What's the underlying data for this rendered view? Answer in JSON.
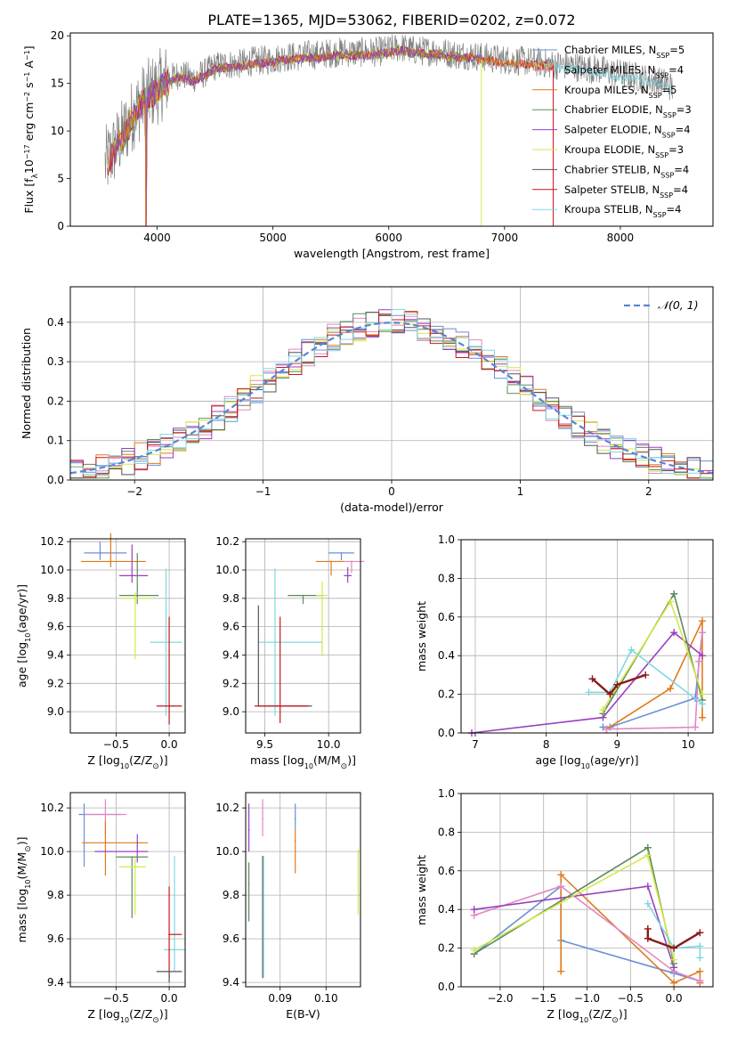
{
  "figure_title": "PLATE=1365, MJD=53062, FIBERID=0202, z=0.072",
  "palette": {
    "Chabrier MILES": "#6a8fd4",
    "Salpeter MILES": "#e387c2",
    "Kroupa MILES": "#e07a1e",
    "Chabrier ELODIE": "#5e8a5e",
    "Salpeter ELODIE": "#9a3fbf",
    "Kroupa ELODIE": "#d4e84a",
    "Chabrier STELIB": "#555555",
    "Salpeter STELIB": "#c8161b",
    "Kroupa STELIB": "#7fd8e0",
    "data": "#808080",
    "normal": "#5b84d6",
    "darkred": "#8b1a1a"
  },
  "chart_data": [
    {
      "id": "spectrum",
      "type": "line",
      "title": "",
      "xlabel": "wavelength [Angstrom, rest frame]",
      "ylabel": "Flux [f_λ10^-17 erg cm^-2 s^-1 A^-1]",
      "xlim": [
        3250,
        8800
      ],
      "ylim": [
        0,
        20.3
      ],
      "xticks": [
        4000,
        5000,
        6000,
        7000,
        8000
      ],
      "yticks": [
        0,
        5,
        10,
        15,
        20
      ],
      "grid": false,
      "legend_position": "right",
      "continuum": {
        "x": [
          3550,
          3600,
          3700,
          3800,
          3900,
          4000,
          4100,
          4200,
          4300,
          4400,
          4500,
          4600,
          4700,
          4800,
          4900,
          5000,
          5100,
          5200,
          5300,
          5400,
          5500,
          5600,
          5700,
          5800,
          5900,
          6000,
          6100,
          6200,
          6300,
          6400,
          6500,
          6600,
          6700,
          6800,
          6900,
          7000,
          7100,
          7200,
          7300,
          7400,
          7500,
          7600,
          7700,
          7800,
          7900,
          8000,
          8100,
          8200,
          8300,
          8400,
          8450
        ],
        "y": [
          6.5,
          7.5,
          9.5,
          12.0,
          13.5,
          14.5,
          15.5,
          16.0,
          15.5,
          16.0,
          16.8,
          17.0,
          17.0,
          17.3,
          17.4,
          17.5,
          17.8,
          17.8,
          18.0,
          18.0,
          18.2,
          18.3,
          18.2,
          18.3,
          18.3,
          18.5,
          18.8,
          18.5,
          18.4,
          18.4,
          18.2,
          18.0,
          18.0,
          17.8,
          17.6,
          17.5,
          17.4,
          17.3,
          17.2,
          17.0,
          16.9,
          16.8,
          16.6,
          16.5,
          16.2,
          16.0,
          15.8,
          15.5,
          15.3,
          15.0,
          14.5
        ]
      },
      "series": [
        {
          "name": "Chabrier MILES, N_SSP=5",
          "label": "Chabrier MILES, N",
          "sub": "SSP",
          "val": "=5"
        },
        {
          "name": "Salpeter MILES, N_SSP=4",
          "label": "Salpeter MILES, N",
          "sub": "SSP",
          "val": "=4"
        },
        {
          "name": "Kroupa MILES, N_SSP=5",
          "label": "Kroupa MILES, N",
          "sub": "SSP",
          "val": "=5"
        },
        {
          "name": "Chabrier ELODIE, N_SSP=3",
          "label": "Chabrier ELODIE, N",
          "sub": "SSP",
          "val": "=3"
        },
        {
          "name": "Salpeter ELODIE, N_SSP=4",
          "label": "Salpeter ELODIE, N",
          "sub": "SSP",
          "val": "=4"
        },
        {
          "name": "Kroupa ELODIE, N_SSP=3",
          "label": "Kroupa ELODIE, N",
          "sub": "SSP",
          "val": "=3"
        },
        {
          "name": "Chabrier STELIB, N_SSP=4",
          "label": "Chabrier STELIB, N",
          "sub": "SSP",
          "val": "=4"
        },
        {
          "name": "Salpeter STELIB, N_SSP=4",
          "label": "Salpeter STELIB, N",
          "sub": "SSP",
          "val": "=4"
        },
        {
          "name": "Kroupa STELIB, N_SSP=4",
          "label": "Kroupa STELIB, N",
          "sub": "SSP",
          "val": "=4"
        }
      ]
    },
    {
      "id": "residuals",
      "type": "line",
      "title": "",
      "xlabel": "(data-model)/error",
      "ylabel": "Normed distribution",
      "xlim": [
        -2.5,
        2.5
      ],
      "ylim": [
        0,
        0.49
      ],
      "xticks": [
        -2,
        -1,
        0,
        1,
        2
      ],
      "yticks": [
        0.0,
        0.1,
        0.2,
        0.3,
        0.4
      ],
      "grid": true,
      "legend": "𝒩(0, 1)",
      "legend_position": "top-right",
      "normal": {
        "mean": 0,
        "sigma": 1
      }
    },
    {
      "id": "age-metallicity",
      "type": "scatter",
      "xlabel": "Z [log10(Z/Z⊙)]",
      "ylabel": "age  [log10(age/yr)]",
      "xlim": [
        -0.93,
        0.15
      ],
      "ylim": [
        8.85,
        10.22
      ],
      "xticks": [
        -0.5,
        0.0
      ],
      "yticks": [
        9.0,
        9.2,
        9.4,
        9.6,
        9.8,
        10.0,
        10.2
      ],
      "grid": true,
      "points": [
        {
          "s": "Chabrier MILES",
          "x": -0.65,
          "y": 10.12,
          "xerr": [
            0.15,
            0.25
          ],
          "yerr": [
            0.05,
            0.08
          ]
        },
        {
          "s": "Kroupa MILES",
          "x": -0.55,
          "y": 10.06,
          "xerr": [
            0.28,
            0.33
          ],
          "yerr": [
            0.04,
            0.2
          ]
        },
        {
          "s": "Salpeter ELODIE",
          "x": -0.35,
          "y": 9.96,
          "xerr": [
            0.12,
            0.15
          ],
          "yerr": [
            0.05,
            0.22
          ]
        },
        {
          "s": "Chabrier ELODIE",
          "x": -0.3,
          "y": 9.82,
          "xerr": [
            0.17,
            0.2
          ],
          "yerr": [
            0.06,
            0.3
          ]
        },
        {
          "s": "Kroupa ELODIE",
          "x": -0.32,
          "y": 9.8,
          "xerr": [
            0.15,
            0.17
          ],
          "yerr": [
            0.43,
            0.04
          ]
        },
        {
          "s": "Kroupa STELIB",
          "x": -0.03,
          "y": 9.49,
          "xerr": [
            0.15,
            0.15
          ],
          "yerr": [
            0.52,
            0.52
          ]
        },
        {
          "s": "Salpeter STELIB",
          "x": 0.0,
          "y": 9.04,
          "xerr": [
            0.12,
            0.12
          ],
          "yerr": [
            0.13,
            0.63
          ]
        },
        {
          "s": "Chabrier STELIB",
          "x": 0.04,
          "y": 9.04,
          "xerr": [
            0.0,
            0.0
          ],
          "yerr": [
            0.0,
            0.0
          ]
        }
      ]
    },
    {
      "id": "age-mass",
      "type": "scatter",
      "xlabel": "mass [log10(M/M⊙)]",
      "ylabel": "",
      "xlim": [
        9.35,
        10.25
      ],
      "ylim": [
        8.85,
        10.22
      ],
      "xticks": [
        9.5,
        10.0
      ],
      "yticks": [
        9.0,
        9.2,
        9.4,
        9.6,
        9.8,
        10.0,
        10.2
      ],
      "grid": true,
      "points": [
        {
          "s": "Chabrier MILES",
          "x": 10.1,
          "y": 10.12,
          "xerr": [
            0.1,
            0.1
          ],
          "yerr": [
            0.05,
            0.0
          ]
        },
        {
          "s": "Salpeter MILES",
          "x": 10.18,
          "y": 10.06,
          "xerr": [
            0.1,
            0.1
          ],
          "yerr": [
            0.08,
            0.0
          ]
        },
        {
          "s": "Kroupa MILES",
          "x": 10.02,
          "y": 10.06,
          "xerr": [
            0.12,
            0.1
          ],
          "yerr": [
            0.1,
            0.0
          ]
        },
        {
          "s": "Salpeter ELODIE",
          "x": 10.15,
          "y": 9.96,
          "xerr": [
            0.03,
            0.03
          ],
          "yerr": [
            0.05,
            0.06
          ]
        },
        {
          "s": "Chabrier ELODIE",
          "x": 9.8,
          "y": 9.82,
          "xerr": [
            0.12,
            0.16
          ],
          "yerr": [
            0.06,
            0.0
          ]
        },
        {
          "s": "Kroupa ELODIE",
          "x": 9.95,
          "y": 9.82,
          "xerr": [
            0.05,
            0.04
          ],
          "yerr": [
            0.43,
            0.1
          ]
        },
        {
          "s": "Kroupa STELIB",
          "x": 9.58,
          "y": 9.49,
          "xerr": [
            0.13,
            0.37
          ],
          "yerr": [
            0.52,
            0.52
          ]
        },
        {
          "s": "Chabrier STELIB",
          "x": 9.45,
          "y": 9.04,
          "xerr": [
            0.0,
            0.42
          ],
          "yerr": [
            0.0,
            0.71
          ]
        },
        {
          "s": "Salpeter STELIB",
          "x": 9.62,
          "y": 9.04,
          "xerr": [
            0.2,
            0.22
          ],
          "yerr": [
            0.12,
            0.63
          ]
        }
      ]
    },
    {
      "id": "weight-age",
      "type": "line",
      "xlabel": "age  [log10(age/yr)]",
      "ylabel": "mass weight",
      "xlim": [
        6.8,
        10.35
      ],
      "ylim": [
        0,
        1.0
      ],
      "xticks": [
        7,
        8,
        9,
        10
      ],
      "yticks": [
        0.0,
        0.2,
        0.4,
        0.6,
        0.8,
        1.0
      ],
      "grid": true,
      "series": [
        {
          "s": "Chabrier MILES",
          "x": [
            8.8,
            8.9,
            10.1,
            10.2
          ],
          "y": [
            0.03,
            0.03,
            0.18,
            0.52
          ]
        },
        {
          "s": "Kroupa MILES",
          "x": [
            8.85,
            9.75,
            10.2,
            10.2
          ],
          "y": [
            0.02,
            0.23,
            0.58,
            0.08
          ]
        },
        {
          "s": "Salpeter MILES",
          "x": [
            8.85,
            10.1,
            10.15,
            10.2
          ],
          "y": [
            0.02,
            0.03,
            0.37,
            0.52
          ]
        },
        {
          "s": "Salpeter ELODIE",
          "x": [
            6.95,
            8.8,
            9.8,
            10.2
          ],
          "y": [
            0.0,
            0.08,
            0.52,
            0.4
          ]
        },
        {
          "s": "Chabrier ELODIE",
          "x": [
            8.8,
            9.8,
            10.2
          ],
          "y": [
            0.1,
            0.72,
            0.17
          ]
        },
        {
          "s": "Kroupa ELODIE",
          "x": [
            8.8,
            9.75,
            10.2
          ],
          "y": [
            0.12,
            0.68,
            0.2
          ]
        },
        {
          "s": "Kroupa STELIB",
          "x": [
            8.6,
            8.9,
            9.2,
            10.2
          ],
          "y": [
            0.21,
            0.21,
            0.43,
            0.15
          ]
        },
        {
          "s": "darkred",
          "x": [
            8.65,
            8.9,
            9.0,
            9.4
          ],
          "y": [
            0.28,
            0.2,
            0.25,
            0.3
          ]
        }
      ]
    },
    {
      "id": "mass-metallicity",
      "type": "scatter",
      "xlabel": "Z [log10(Z/Z⊙)]",
      "ylabel": "mass [log10(M/M⊙)]",
      "xlim": [
        -0.93,
        0.15
      ],
      "ylim": [
        9.38,
        10.27
      ],
      "xticks": [
        -0.5,
        0.0
      ],
      "yticks": [
        9.4,
        9.6,
        9.8,
        10.0,
        10.2
      ],
      "grid": true,
      "points": [
        {
          "s": "Chabrier MILES",
          "x": -0.8,
          "y": 10.17,
          "xerr": [
            0.05,
            0.35
          ],
          "yerr": [
            0.24,
            0.05
          ]
        },
        {
          "s": "Salpeter MILES",
          "x": -0.6,
          "y": 10.17,
          "xerr": [
            0.2,
            0.2
          ],
          "yerr": [
            0.1,
            0.07
          ]
        },
        {
          "s": "Kroupa MILES",
          "x": -0.6,
          "y": 10.04,
          "xerr": [
            0.22,
            0.4
          ],
          "yerr": [
            0.15,
            0.1
          ]
        },
        {
          "s": "Salpeter ELODIE",
          "x": -0.3,
          "y": 10.0,
          "xerr": [
            0.4,
            0.1
          ],
          "yerr": [
            0.05,
            0.08
          ]
        },
        {
          "s": "Chabrier ELODIE",
          "x": -0.35,
          "y": 9.975,
          "xerr": [
            0.15,
            0.15
          ],
          "yerr": [
            0.28,
            0.0
          ]
        },
        {
          "s": "Kroupa ELODIE",
          "x": -0.32,
          "y": 9.93,
          "xerr": [
            0.15,
            0.1
          ],
          "yerr": [
            0.22,
            0.04
          ]
        },
        {
          "s": "Kroupa STELIB",
          "x": 0.05,
          "y": 9.55,
          "xerr": [
            0.1,
            0.1
          ],
          "yerr": [
            0.1,
            0.43
          ]
        },
        {
          "s": "Salpeter STELIB",
          "x": 0.0,
          "y": 9.62,
          "xerr": [
            0.0,
            0.12
          ],
          "yerr": [
            0.2,
            0.22
          ]
        },
        {
          "s": "Chabrier STELIB",
          "x": 0.0,
          "y": 9.45,
          "xerr": [
            0.12,
            0.12
          ],
          "yerr": [
            0.05,
            0.0
          ]
        }
      ]
    },
    {
      "id": "mass-extinction",
      "type": "scatter",
      "xlabel": "E(B-V)",
      "ylabel": "",
      "xlim": [
        0.0825,
        0.1075
      ],
      "ylim": [
        9.38,
        10.27
      ],
      "xticks": [
        0.09,
        0.1
      ],
      "yticks": [
        9.4,
        9.6,
        9.8,
        10.0,
        10.2
      ],
      "grid": true,
      "points": [
        {
          "s": "Chabrier MILES",
          "x": 0.0933,
          "y": 10.15,
          "yerr": [
            0.05,
            0.07
          ]
        },
        {
          "s": "Kroupa MILES",
          "x": 0.0933,
          "y": 10.05,
          "yerr": [
            0.15,
            0.05
          ]
        },
        {
          "s": "Salpeter MILES",
          "x": 0.0862,
          "y": 10.15,
          "yerr": [
            0.08,
            0.09
          ]
        },
        {
          "s": "Salpeter ELODIE",
          "x": 0.0832,
          "y": 10.1,
          "yerr": [
            0.1,
            0.12
          ]
        },
        {
          "s": "Chabrier ELODIE",
          "x": 0.0832,
          "y": 9.85,
          "yerr": [
            0.17,
            0.1
          ]
        },
        {
          "s": "Kroupa ELODIE",
          "x": 0.107,
          "y": 9.85,
          "yerr": [
            0.14,
            0.16
          ]
        },
        {
          "s": "Chabrier STELIB",
          "x": 0.0862,
          "y": 9.7,
          "yerr": [
            0.28,
            0.28
          ]
        },
        {
          "s": "Kroupa STELIB",
          "x": 0.0864,
          "y": 9.7,
          "yerr": [
            0.28,
            0.28
          ]
        }
      ]
    },
    {
      "id": "weight-metallicity",
      "type": "line",
      "xlabel": "Z [log10(Z/Z⊙)]",
      "ylabel": "mass weight",
      "xlim": [
        -2.45,
        0.45
      ],
      "ylim": [
        0,
        1.0
      ],
      "xticks": [
        -2.0,
        -1.5,
        -1.0,
        -0.5,
        0.0
      ],
      "yticks": [
        0.0,
        0.2,
        0.4,
        0.6,
        0.8,
        1.0
      ],
      "grid": true,
      "series": [
        {
          "s": "Chabrier MILES",
          "x": [
            -2.3,
            -1.3,
            -1.3,
            0.0,
            0.3
          ],
          "y": [
            0.17,
            0.52,
            0.24,
            0.07,
            0.03
          ]
        },
        {
          "s": "Kroupa MILES",
          "x": [
            -1.3,
            -1.3,
            0.0,
            0.3,
            0.3
          ],
          "y": [
            0.08,
            0.58,
            0.02,
            0.08,
            0.02
          ]
        },
        {
          "s": "Salpeter MILES",
          "x": [
            -2.3,
            -1.3,
            0.0,
            0.3
          ],
          "y": [
            0.37,
            0.52,
            0.08,
            0.03
          ]
        },
        {
          "s": "Salpeter ELODIE",
          "x": [
            -2.3,
            -0.3,
            0.0
          ],
          "y": [
            0.4,
            0.52,
            0.1
          ]
        },
        {
          "s": "Chabrier ELODIE",
          "x": [
            -2.3,
            -0.3,
            0.0
          ],
          "y": [
            0.17,
            0.72,
            0.12
          ]
        },
        {
          "s": "Kroupa ELODIE",
          "x": [
            -2.3,
            -0.3,
            0.0
          ],
          "y": [
            0.19,
            0.68,
            0.14
          ]
        },
        {
          "s": "Kroupa STELIB",
          "x": [
            -0.3,
            0.0,
            0.3,
            0.3
          ],
          "y": [
            0.43,
            0.2,
            0.21,
            0.15
          ]
        },
        {
          "s": "darkred",
          "x": [
            -0.3,
            -0.3,
            0.0,
            0.3
          ],
          "y": [
            0.3,
            0.25,
            0.2,
            0.28
          ]
        }
      ]
    }
  ]
}
